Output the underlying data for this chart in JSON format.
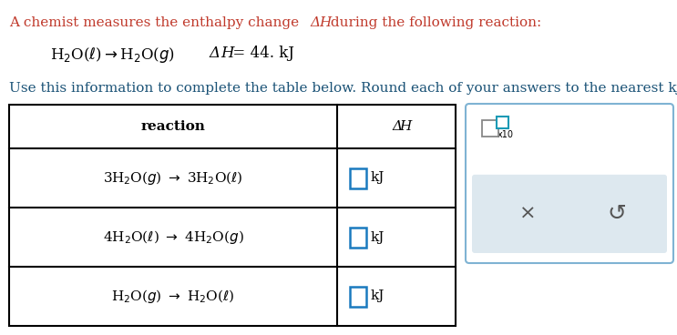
{
  "bg_color": "#ffffff",
  "header_color": "#c0392b",
  "instruction_color": "#1a5276",
  "text_color": "#000000",
  "table_border_color": "#000000",
  "input_box_color": "#1a7abf",
  "panel_border_color": "#7fb3d3",
  "panel_bg_color": "#ffffff",
  "panel_bottom_bg": "#dde8ef",
  "cb_gray_color": "#888888",
  "cb_blue_color": "#1a9ab5",
  "header_line": "A chemist measures the enthalpy change ΔH during the following reaction:",
  "reaction_formula": "H₂O(ℓ)→H₂O(g)",
  "reaction_dH": "ΔH = 44. kJ",
  "instruction": "Use this information to complete the table below. Round each of your answers to the nearest kJ/mol.",
  "col1_header": "reaction",
  "col2_header": "ΔH",
  "row_reactions": [
    "3H₂O(g) → 3H₂O(ℓ)",
    "4H₂O(ℓ) → 4H₂O(g)",
    "H₂O(g) → H₂O(ℓ)"
  ],
  "kJ_label": "kJ",
  "x10_label": "x10",
  "cross_symbol": "×",
  "undo_symbol": "↺"
}
